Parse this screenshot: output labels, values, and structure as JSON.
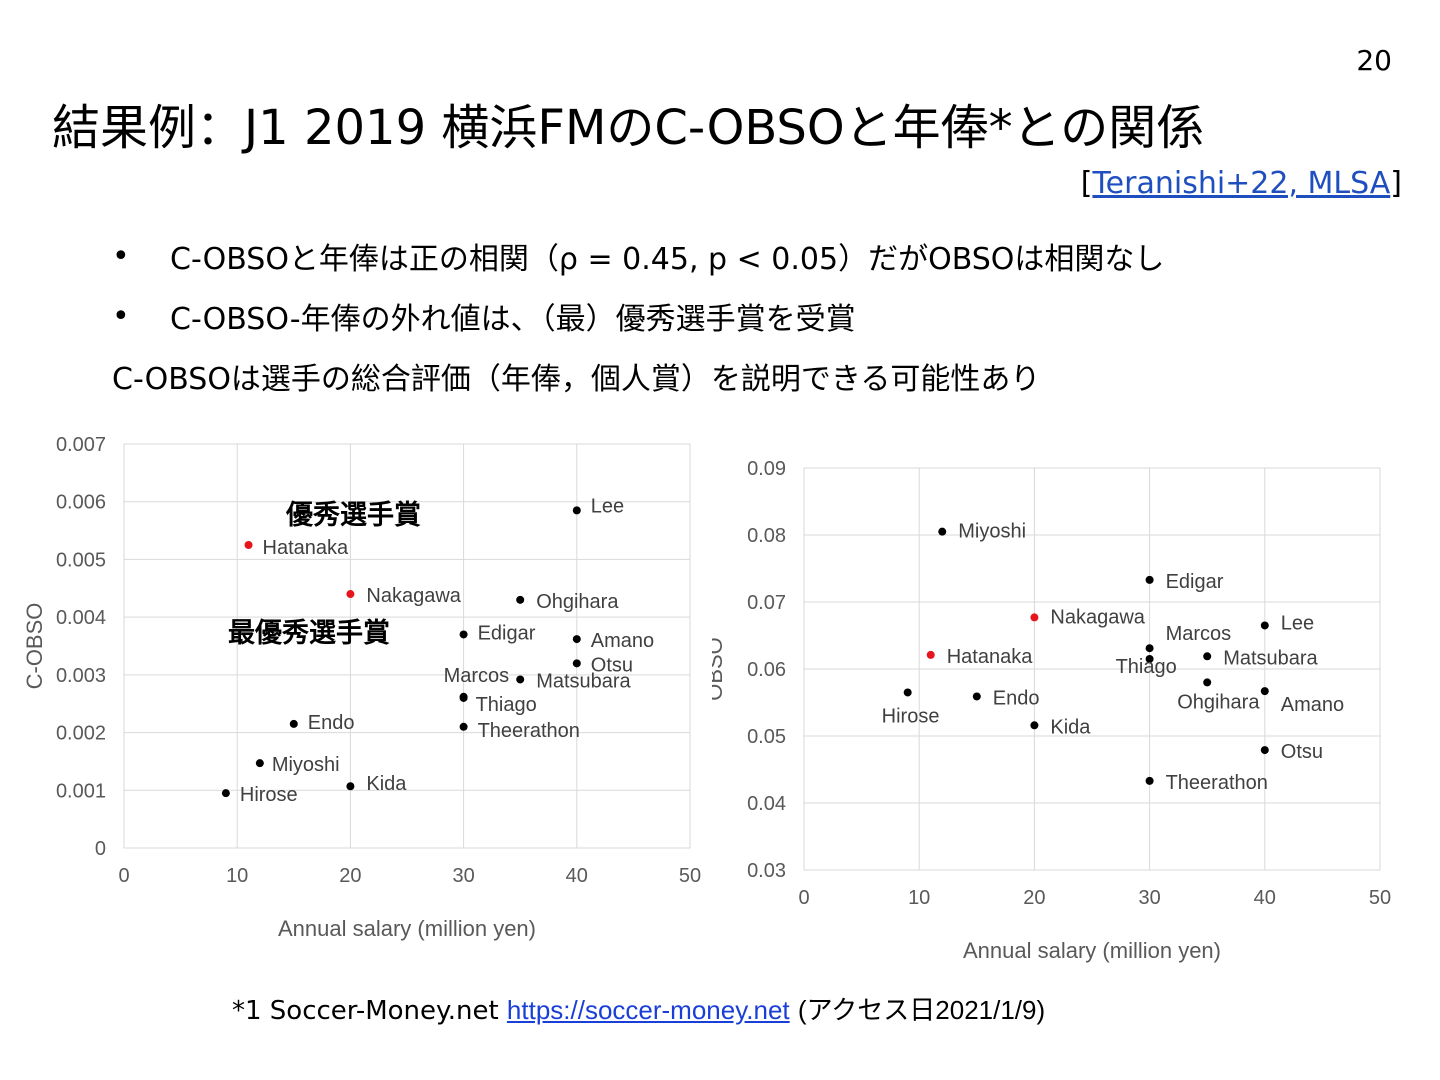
{
  "slide": {
    "page_number": "20",
    "title": "結果例：J1 2019 横浜FMのC-OBSOと年俸*との関係",
    "citation": {
      "open": "[",
      "link": "Teranishi+22, MLSA",
      "close": "]"
    },
    "bullets": [
      "C-OBSOと年俸は正の相関（ρ = 0.45, p < 0.05）だがOBSOは相関なし",
      "C-OBSO-年俸の外れ値は、（最）優秀選手賞を受賞"
    ],
    "conclusion": "C-OBSOは選手の総合評価（年俸，個人賞）を説明できる可能性あり",
    "footnote": {
      "prefix": "*1 Soccer-Money.net",
      "link": "https://soccer-money.net",
      "note": "(アクセス日2021/1/9)"
    }
  },
  "chart_data": [
    {
      "type": "scatter",
      "title": "",
      "xlabel": "Annual salary (million yen)",
      "ylabel": "C-OBSO",
      "xlim": [
        0,
        50
      ],
      "ylim": [
        0,
        0.007
      ],
      "x_ticks": [
        "0",
        "10",
        "20",
        "30",
        "40",
        "50"
      ],
      "y_ticks": [
        "0",
        "0.001",
        "0.002",
        "0.003",
        "0.004",
        "0.005",
        "0.006",
        "0.007"
      ],
      "grid": true,
      "annotations": [
        "優秀選手賞",
        "最優秀選手賞"
      ],
      "highlight_color": "#e8141b",
      "point_color": "#000000",
      "points": [
        {
          "label": "Lee",
          "x": 40,
          "y": 0.00585
        },
        {
          "label": "Hatanaka",
          "x": 11,
          "y": 0.00525,
          "highlight": true
        },
        {
          "label": "Nakagawa",
          "x": 20,
          "y": 0.0044,
          "highlight": true
        },
        {
          "label": "Ohgihara",
          "x": 35,
          "y": 0.0043
        },
        {
          "label": "Edigar",
          "x": 30,
          "y": 0.0037
        },
        {
          "label": "Amano",
          "x": 40,
          "y": 0.00362
        },
        {
          "label": "Otsu",
          "x": 40,
          "y": 0.0032
        },
        {
          "label": "Marcos",
          "x": 30,
          "y": 0.0026
        },
        {
          "label": "Matsubara",
          "x": 35,
          "y": 0.00292
        },
        {
          "label": "Thiago",
          "x": 30,
          "y": 0.00262
        },
        {
          "label": "Theerathon",
          "x": 30,
          "y": 0.0021
        },
        {
          "label": "Endo",
          "x": 15,
          "y": 0.00215
        },
        {
          "label": "Miyoshi",
          "x": 12,
          "y": 0.00147
        },
        {
          "label": "Kida",
          "x": 20,
          "y": 0.00107
        },
        {
          "label": "Hirose",
          "x": 9,
          "y": 0.00095
        }
      ]
    },
    {
      "type": "scatter",
      "title": "",
      "xlabel": "Annual salary (million yen)",
      "ylabel": "OBSO",
      "xlim": [
        0,
        50
      ],
      "ylim": [
        0.03,
        0.09
      ],
      "x_ticks": [
        "0",
        "10",
        "20",
        "30",
        "40",
        "50"
      ],
      "y_ticks": [
        "0.03",
        "0.04",
        "0.05",
        "0.06",
        "0.07",
        "0.08",
        "0.09"
      ],
      "grid": true,
      "highlight_color": "#e8141b",
      "point_color": "#000000",
      "points": [
        {
          "label": "Miyoshi",
          "x": 12,
          "y": 0.0805
        },
        {
          "label": "Edigar",
          "x": 30,
          "y": 0.0733
        },
        {
          "label": "Nakagawa",
          "x": 20,
          "y": 0.0677,
          "highlight": true
        },
        {
          "label": "Lee",
          "x": 40,
          "y": 0.0665
        },
        {
          "label": "Marcos",
          "x": 30,
          "y": 0.0631
        },
        {
          "label": "Hatanaka",
          "x": 11,
          "y": 0.0621,
          "highlight": true
        },
        {
          "label": "Matsubara",
          "x": 35,
          "y": 0.0619
        },
        {
          "label": "Thiago",
          "x": 30,
          "y": 0.0615
        },
        {
          "label": "Ohgihara",
          "x": 35,
          "y": 0.058
        },
        {
          "label": "Amano",
          "x": 40,
          "y": 0.0567
        },
        {
          "label": "Hirose",
          "x": 9,
          "y": 0.0565
        },
        {
          "label": "Endo",
          "x": 15,
          "y": 0.0559
        },
        {
          "label": "Kida",
          "x": 20,
          "y": 0.0516
        },
        {
          "label": "Otsu",
          "x": 40,
          "y": 0.0479
        },
        {
          "label": "Theerathon",
          "x": 30,
          "y": 0.0433
        }
      ]
    }
  ]
}
